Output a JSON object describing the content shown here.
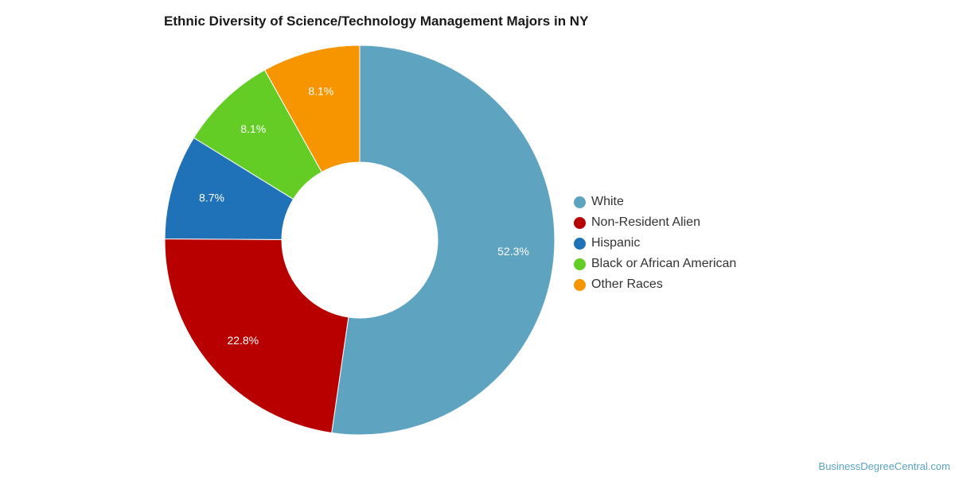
{
  "chart_data": {
    "type": "pie",
    "variant": "donut",
    "title": "Ethnic Diversity of Science/Technology Management Majors in NY",
    "categories": [
      "White",
      "Non-Resident Alien",
      "Hispanic",
      "Black or African American",
      "Other Races"
    ],
    "values": [
      52.3,
      22.8,
      8.7,
      8.1,
      8.1
    ],
    "labels": [
      "52.3%",
      "22.8%",
      "8.7%",
      "8.1%",
      "8.1%"
    ],
    "unit": "%",
    "colors": [
      "#5ea3c0",
      "#b80000",
      "#1f72b8",
      "#63cd25",
      "#f69500"
    ],
    "legend_position": "right"
  },
  "source": "BusinessDegreeCentral.com"
}
